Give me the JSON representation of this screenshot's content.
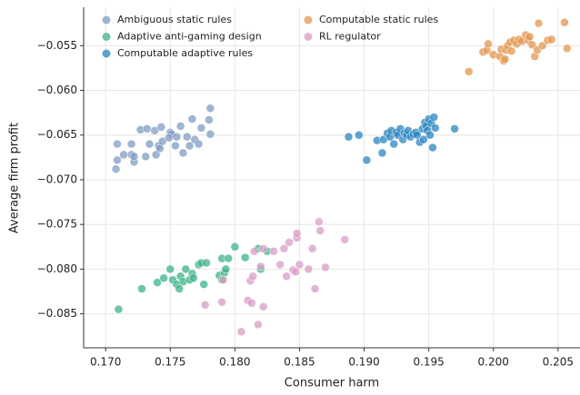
{
  "chart_data": {
    "type": "scatter",
    "xlabel": "Consumer harm",
    "ylabel": "Average firm profit",
    "xlim": [
      0.1683,
      0.2067
    ],
    "ylim": [
      -0.0888,
      -0.0507
    ],
    "xticks": [
      {
        "value": 0.17,
        "label": "0.170"
      },
      {
        "value": 0.175,
        "label": "0.175"
      },
      {
        "value": 0.18,
        "label": "0.180"
      },
      {
        "value": 0.185,
        "label": "0.185"
      },
      {
        "value": 0.19,
        "label": "0.190"
      },
      {
        "value": 0.195,
        "label": "0.195"
      },
      {
        "value": 0.2,
        "label": "0.200"
      },
      {
        "value": 0.205,
        "label": "0.205"
      }
    ],
    "yticks": [
      {
        "value": -0.085,
        "label": "−0.085"
      },
      {
        "value": -0.08,
        "label": "−0.080"
      },
      {
        "value": -0.075,
        "label": "−0.075"
      },
      {
        "value": -0.07,
        "label": "−0.070"
      },
      {
        "value": -0.065,
        "label": "−0.065"
      },
      {
        "value": -0.06,
        "label": "−0.060"
      },
      {
        "value": -0.055,
        "label": "−0.055"
      }
    ],
    "grid": true,
    "legend": "upper left",
    "series": [
      {
        "name": "Ambiguous static rules",
        "color": "#7f9cc1",
        "x": [
          0.1708,
          0.1709,
          0.1709,
          0.1714,
          0.172,
          0.172,
          0.1722,
          0.1722,
          0.1727,
          0.1732,
          0.1731,
          0.1734,
          0.1738,
          0.1739,
          0.1741,
          0.1742,
          0.1743,
          0.1744,
          0.175,
          0.1751,
          0.1749,
          0.1755,
          0.1754,
          0.1758,
          0.176,
          0.1763,
          0.1765,
          0.1767,
          0.1769,
          0.1772,
          0.1774,
          0.178,
          0.1781,
          0.1781
        ],
        "y": [
          -0.0688,
          -0.0678,
          -0.066,
          -0.0672,
          -0.066,
          -0.0672,
          -0.068,
          -0.0674,
          -0.0644,
          -0.0643,
          -0.0674,
          -0.066,
          -0.0645,
          -0.0672,
          -0.0662,
          -0.0665,
          -0.0641,
          -0.0657,
          -0.0647,
          -0.0649,
          -0.0653,
          -0.0652,
          -0.0662,
          -0.064,
          -0.067,
          -0.0652,
          -0.0662,
          -0.0632,
          -0.0655,
          -0.066,
          -0.0642,
          -0.0633,
          -0.0649,
          -0.062
        ]
      },
      {
        "name": "Adaptive anti-gaming design",
        "color": "#3cb386",
        "x": [
          0.171,
          0.1728,
          0.174,
          0.1745,
          0.175,
          0.1752,
          0.1755,
          0.1757,
          0.1758,
          0.176,
          0.1762,
          0.1765,
          0.1767,
          0.1768,
          0.1772,
          0.1774,
          0.1776,
          0.1778,
          0.1788,
          0.179,
          0.179,
          0.1792,
          0.1793,
          0.1795,
          0.18,
          0.1808,
          0.1818,
          0.182,
          0.1825
        ],
        "y": [
          -0.0845,
          -0.0822,
          -0.0815,
          -0.081,
          -0.08,
          -0.0812,
          -0.0817,
          -0.0822,
          -0.0808,
          -0.0814,
          -0.08,
          -0.0812,
          -0.0805,
          -0.081,
          -0.0795,
          -0.0793,
          -0.0817,
          -0.0793,
          -0.0807,
          -0.0812,
          -0.0788,
          -0.0804,
          -0.08,
          -0.0788,
          -0.0775,
          -0.0787,
          -0.0777,
          -0.08,
          -0.078
        ]
      },
      {
        "name": "Computable adaptive rules",
        "color": "#2a86bf",
        "x": [
          0.1888,
          0.1896,
          0.1902,
          0.191,
          0.1914,
          0.1915,
          0.1918,
          0.192,
          0.1921,
          0.1923,
          0.1925,
          0.1926,
          0.1928,
          0.193,
          0.1931,
          0.1933,
          0.1934,
          0.1936,
          0.1938,
          0.194,
          0.1941,
          0.1943,
          0.1945,
          0.1946,
          0.1947,
          0.1948,
          0.1949,
          0.195,
          0.1951,
          0.1952,
          0.1953,
          0.1954,
          0.1955,
          0.197
        ],
        "y": [
          -0.0652,
          -0.065,
          -0.0678,
          -0.0656,
          -0.067,
          -0.0655,
          -0.0648,
          -0.0652,
          -0.0645,
          -0.066,
          -0.0647,
          -0.065,
          -0.0643,
          -0.0655,
          -0.0648,
          -0.065,
          -0.0645,
          -0.0652,
          -0.0649,
          -0.0647,
          -0.065,
          -0.0658,
          -0.0643,
          -0.0655,
          -0.0636,
          -0.064,
          -0.0645,
          -0.0632,
          -0.065,
          -0.0637,
          -0.0664,
          -0.063,
          -0.0642,
          -0.0643
        ]
      },
      {
        "name": "Computable static rules",
        "color": "#e39650",
        "x": [
          0.1981,
          0.1992,
          0.1995,
          0.1996,
          0.2,
          0.2005,
          0.2006,
          0.2008,
          0.2009,
          0.201,
          0.2011,
          0.2013,
          0.2014,
          0.2016,
          0.2018,
          0.202,
          0.2022,
          0.2025,
          0.2027,
          0.2028,
          0.203,
          0.2032,
          0.2034,
          0.2035,
          0.2038,
          0.2042,
          0.2045,
          0.2055,
          0.2057
        ],
        "y": [
          -0.0579,
          -0.0557,
          -0.0555,
          -0.0548,
          -0.056,
          -0.0562,
          -0.0554,
          -0.0567,
          -0.0565,
          -0.0555,
          -0.055,
          -0.0546,
          -0.0556,
          -0.0544,
          -0.0548,
          -0.0543,
          -0.0545,
          -0.0538,
          -0.0544,
          -0.054,
          -0.0549,
          -0.0562,
          -0.0555,
          -0.0525,
          -0.055,
          -0.0544,
          -0.0543,
          -0.0524,
          -0.0553
        ]
      },
      {
        "name": "RL regulator",
        "color": "#d89cc7",
        "x": [
          0.1777,
          0.179,
          0.1791,
          0.1805,
          0.181,
          0.1812,
          0.1813,
          0.1814,
          0.1815,
          0.1818,
          0.1822,
          0.182,
          0.1822,
          0.183,
          0.1835,
          0.1838,
          0.184,
          0.1842,
          0.1845,
          0.1847,
          0.1848,
          0.1848,
          0.185,
          0.1857,
          0.186,
          0.1862,
          0.1865,
          0.1866,
          0.187,
          0.1885
        ],
        "y": [
          -0.084,
          -0.0837,
          -0.0812,
          -0.087,
          -0.0835,
          -0.0813,
          -0.0838,
          -0.0808,
          -0.078,
          -0.0862,
          -0.0842,
          -0.0797,
          -0.0777,
          -0.078,
          -0.0795,
          -0.0777,
          -0.0808,
          -0.077,
          -0.0801,
          -0.0803,
          -0.0765,
          -0.076,
          -0.0795,
          -0.08,
          -0.0777,
          -0.0822,
          -0.0747,
          -0.0757,
          -0.0798,
          -0.0767
        ]
      }
    ]
  }
}
